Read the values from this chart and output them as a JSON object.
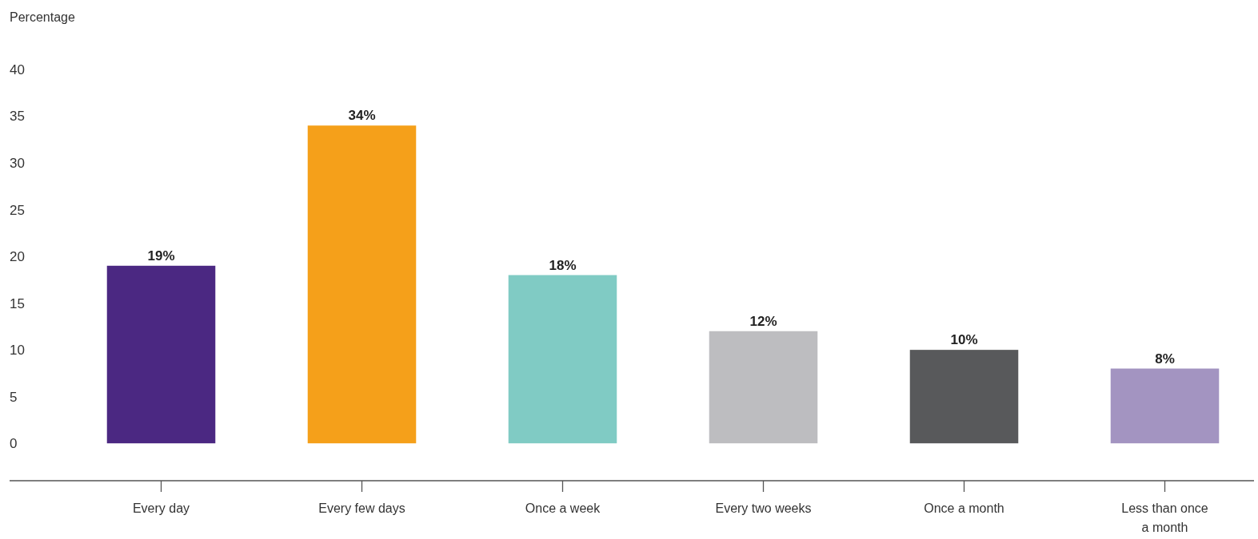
{
  "chart_data": {
    "type": "bar",
    "ylabel": "Percentage",
    "categories": [
      "Every day",
      "Every few days",
      "Once a week",
      "Every two weeks",
      "Once a month",
      "Less than once a month"
    ],
    "values": [
      19,
      34,
      18,
      12,
      10,
      8
    ],
    "colors": [
      "#4b2882",
      "#f5a01a",
      "#80cbc4",
      "#bdbdc0",
      "#58595b",
      "#a394c1"
    ],
    "value_labels": [
      "19%",
      "34%",
      "18%",
      "12%",
      "10%",
      "8%"
    ],
    "ylim": [
      -4,
      40
    ],
    "yticks": [
      0,
      5,
      10,
      15,
      20,
      25,
      30,
      35,
      40
    ],
    "grid": false
  }
}
